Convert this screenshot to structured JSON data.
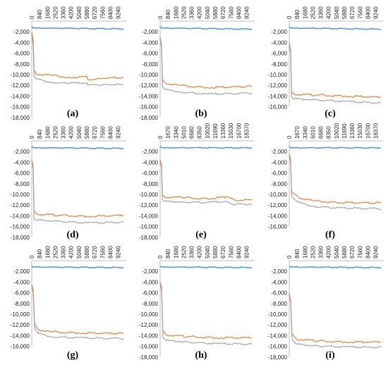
{
  "colors": {
    "series_1": "#5B9BD5",
    "series_2": "#ED7D31",
    "series_3": "#A5A5A5",
    "axis": "#bfbfbf"
  },
  "chart_data": [
    {
      "label": "(a)",
      "type": "line",
      "x_ticks": [
        "0",
        "840",
        "1680",
        "2520",
        "3360",
        "4200",
        "5040",
        "5880",
        "6720",
        "7560",
        "8400",
        "9240"
      ],
      "x_max": 9800,
      "ylim": [
        -18000,
        0
      ],
      "y_ticks": [
        "-2,000",
        "-4,000",
        "-6,000",
        "-8,000",
        "-10,000",
        "-12,000",
        "-14,000",
        "-16,000",
        "-18,000"
      ],
      "x_axis_position": "top",
      "series": [
        {
          "values": [
            [
              0,
              -1000
            ],
            [
              150,
              -1300
            ],
            [
              9800,
              -1450
            ]
          ]
        },
        {
          "values": [
            [
              0,
              -2000
            ],
            [
              150,
              -3500
            ],
            [
              250,
              -9200
            ],
            [
              500,
              -9900
            ],
            [
              2000,
              -10100
            ],
            [
              4000,
              -10500
            ],
            [
              5900,
              -10400
            ],
            [
              6000,
              -10900
            ],
            [
              8000,
              -10700
            ],
            [
              9800,
              -10500
            ]
          ]
        },
        {
          "values": [
            [
              0,
              -2500
            ],
            [
              150,
              -4500
            ],
            [
              250,
              -10300
            ],
            [
              500,
              -10800
            ],
            [
              2000,
              -11400
            ],
            [
              4000,
              -11600
            ],
            [
              5900,
              -11500
            ],
            [
              6000,
              -12000
            ],
            [
              8000,
              -11800
            ],
            [
              9800,
              -11900
            ]
          ]
        }
      ]
    },
    {
      "label": "(b)",
      "type": "line",
      "x_ticks": [
        "0",
        "840",
        "1680",
        "2520",
        "3360",
        "4200",
        "5040",
        "5880",
        "6720",
        "7560",
        "8400",
        "9240"
      ],
      "x_max": 9800,
      "ylim": [
        -18000,
        0
      ],
      "y_ticks": [
        "-2,000",
        "-4,000",
        "-6,000",
        "-8,000",
        "-10,000",
        "-12,000",
        "-14,000",
        "-16,000",
        "-18,000"
      ],
      "x_axis_position": "top",
      "series": [
        {
          "values": [
            [
              0,
              -1000
            ],
            [
              150,
              -1300
            ],
            [
              9800,
              -1500
            ]
          ]
        },
        {
          "values": [
            [
              0,
              -3000
            ],
            [
              150,
              -4500
            ],
            [
              250,
              -11000
            ],
            [
              600,
              -11600
            ],
            [
              2000,
              -12000
            ],
            [
              5000,
              -12400
            ],
            [
              9800,
              -12200
            ]
          ]
        },
        {
          "values": [
            [
              0,
              -3500
            ],
            [
              150,
              -5000
            ],
            [
              250,
              -12200
            ],
            [
              600,
              -12800
            ],
            [
              2000,
              -13200
            ],
            [
              5000,
              -13600
            ],
            [
              9800,
              -13500
            ]
          ]
        }
      ]
    },
    {
      "label": "(c)",
      "type": "line",
      "x_ticks": [
        "0",
        "840",
        "1680",
        "2520",
        "3360",
        "4200",
        "5040",
        "5880",
        "6720",
        "7560",
        "8400",
        "9240"
      ],
      "x_max": 9800,
      "ylim": [
        -16000,
        0
      ],
      "y_ticks": [
        "-2,000",
        "-4,000",
        "-6,000",
        "-8,000",
        "-10,000",
        "-12,000",
        "-14,000",
        "-16,000"
      ],
      "x_axis_position": "top",
      "series": [
        {
          "values": [
            [
              0,
              -1000
            ],
            [
              150,
              -1300
            ],
            [
              9800,
              -1500
            ]
          ]
        },
        {
          "values": [
            [
              0,
              -4000
            ],
            [
              150,
              -5500
            ],
            [
              250,
              -13300
            ],
            [
              600,
              -13700
            ],
            [
              3000,
              -13800
            ],
            [
              6000,
              -14000
            ],
            [
              9800,
              -14200
            ]
          ]
        },
        {
          "values": [
            [
              0,
              -4500
            ],
            [
              150,
              -6000
            ],
            [
              250,
              -14200
            ],
            [
              600,
              -14500
            ],
            [
              3000,
              -14700
            ],
            [
              6000,
              -15000
            ],
            [
              9800,
              -15300
            ]
          ]
        }
      ]
    },
    {
      "label": "(d)",
      "type": "line",
      "x_ticks": [
        "0",
        "840",
        "1680",
        "2520",
        "3360",
        "4200",
        "5040",
        "5880",
        "6720",
        "7560",
        "8400",
        "9240"
      ],
      "x_max": 9800,
      "ylim": [
        -18000,
        0
      ],
      "y_ticks": [
        "-2,000",
        "-4,000",
        "-6,000",
        "-8,000",
        "-10,000",
        "-12,000",
        "-14,000",
        "-16,000",
        "-18,000"
      ],
      "x_axis_position": "top",
      "series": [
        {
          "values": [
            [
              0,
              -1000
            ],
            [
              150,
              -1300
            ],
            [
              9800,
              -1400
            ]
          ]
        },
        {
          "values": [
            [
              0,
              -3500
            ],
            [
              150,
              -4800
            ],
            [
              250,
              -13200
            ],
            [
              600,
              -13700
            ],
            [
              3000,
              -13900
            ],
            [
              6000,
              -14100
            ],
            [
              9800,
              -13900
            ]
          ]
        },
        {
          "values": [
            [
              0,
              -4000
            ],
            [
              150,
              -5300
            ],
            [
              250,
              -14500
            ],
            [
              600,
              -14800
            ],
            [
              3000,
              -15000
            ],
            [
              6000,
              -15300
            ],
            [
              9800,
              -15200
            ]
          ]
        }
      ]
    },
    {
      "label": "(e)",
      "type": "line",
      "x_ticks": [
        "0",
        "1670",
        "3340",
        "5010",
        "6680",
        "8350",
        "10020",
        "11690",
        "13360",
        "15030",
        "16700",
        "18370"
      ],
      "x_max": 19500,
      "ylim": [
        -18000,
        0
      ],
      "y_ticks": [
        "-2,000",
        "-4,000",
        "-6,000",
        "-8,000",
        "-10,000",
        "-12,000",
        "-14,000",
        "-16,000",
        "-18,000"
      ],
      "x_axis_position": "top",
      "series": [
        {
          "values": [
            [
              0,
              -1000
            ],
            [
              300,
              -1300
            ],
            [
              19500,
              -1300
            ]
          ]
        },
        {
          "values": [
            [
              0,
              -3500
            ],
            [
              300,
              -4500
            ],
            [
              500,
              -10200
            ],
            [
              1000,
              -10500
            ],
            [
              5000,
              -10600
            ],
            [
              10000,
              -10800
            ],
            [
              14000,
              -10500
            ],
            [
              16000,
              -11100
            ],
            [
              19500,
              -11000
            ]
          ]
        },
        {
          "values": [
            [
              0,
              -4000
            ],
            [
              300,
              -5000
            ],
            [
              500,
              -11000
            ],
            [
              1000,
              -11300
            ],
            [
              5000,
              -11400
            ],
            [
              10000,
              -11500
            ],
            [
              14000,
              -11300
            ],
            [
              16000,
              -11900
            ],
            [
              19500,
              -11800
            ]
          ]
        }
      ]
    },
    {
      "label": "(f)",
      "type": "line",
      "x_ticks": [
        "0",
        "1670",
        "3340",
        "5010",
        "6680",
        "8350",
        "10020",
        "11690",
        "13360",
        "15030",
        "16700",
        "18370"
      ],
      "x_max": 19500,
      "ylim": [
        -16000,
        0
      ],
      "y_ticks": [
        "-2,000",
        "-4,000",
        "-6,000",
        "-8,000",
        "-10,000",
        "-12,000",
        "-14,000",
        "-16,000"
      ],
      "x_axis_position": "top",
      "series": [
        {
          "values": [
            [
              0,
              -1000
            ],
            [
              300,
              -1300
            ],
            [
              19500,
              -1300
            ]
          ]
        },
        {
          "values": [
            [
              0,
              -2500
            ],
            [
              300,
              -3500
            ],
            [
              500,
              -9500
            ],
            [
              2000,
              -10600
            ],
            [
              5000,
              -11200
            ],
            [
              10000,
              -11500
            ],
            [
              19500,
              -11600
            ]
          ]
        },
        {
          "values": [
            [
              0,
              -3000
            ],
            [
              300,
              -4000
            ],
            [
              500,
              -10300
            ],
            [
              2000,
              -11500
            ],
            [
              5000,
              -12200
            ],
            [
              10000,
              -12500
            ],
            [
              19500,
              -12700
            ]
          ]
        }
      ]
    },
    {
      "label": "(g)",
      "type": "line",
      "x_ticks": [
        "0",
        "840",
        "1680",
        "2520",
        "3360",
        "4200",
        "5040",
        "5880",
        "6720",
        "7560",
        "8400",
        "9240"
      ],
      "x_max": 9800,
      "ylim": [
        -16000,
        0
      ],
      "y_ticks": [
        "-2,000",
        "-4,000",
        "-6,000",
        "-8,000",
        "-10,000",
        "-12,000",
        "-14,000",
        "-16,000"
      ],
      "x_axis_position": "top",
      "series": [
        {
          "values": [
            [
              0,
              -1000
            ],
            [
              150,
              -1200
            ],
            [
              9800,
              -1300
            ]
          ]
        },
        {
          "values": [
            [
              0,
              -4500
            ],
            [
              150,
              -5500
            ],
            [
              300,
              -11800
            ],
            [
              700,
              -12900
            ],
            [
              2000,
              -13300
            ],
            [
              5000,
              -13500
            ],
            [
              9800,
              -13600
            ]
          ]
        },
        {
          "values": [
            [
              0,
              -5000
            ],
            [
              150,
              -6000
            ],
            [
              300,
              -12500
            ],
            [
              700,
              -13600
            ],
            [
              2000,
              -14200
            ],
            [
              5000,
              -14400
            ],
            [
              9800,
              -14600
            ]
          ]
        }
      ]
    },
    {
      "label": "(h)",
      "type": "line",
      "x_ticks": [
        "0",
        "840",
        "1680",
        "2520",
        "3360",
        "4200",
        "5040",
        "5880",
        "6720",
        "7560",
        "8400",
        "9240"
      ],
      "x_max": 9800,
      "ylim": [
        -18000,
        0
      ],
      "y_ticks": [
        "-2,000",
        "-4,000",
        "-6,000",
        "-8,000",
        "-10,000",
        "-12,000",
        "-14,000",
        "-16,000",
        "-18,000"
      ],
      "x_axis_position": "top",
      "series": [
        {
          "values": [
            [
              0,
              -1000
            ],
            [
              150,
              -1200
            ],
            [
              9800,
              -1300
            ]
          ]
        },
        {
          "values": [
            [
              0,
              -4000
            ],
            [
              150,
              -5000
            ],
            [
              300,
              -13200
            ],
            [
              700,
              -13900
            ],
            [
              3000,
              -14200
            ],
            [
              6000,
              -14400
            ],
            [
              9800,
              -14400
            ]
          ]
        },
        {
          "values": [
            [
              0,
              -4500
            ],
            [
              150,
              -5500
            ],
            [
              300,
              -14300
            ],
            [
              700,
              -14900
            ],
            [
              3000,
              -15200
            ],
            [
              6000,
              -15500
            ],
            [
              9800,
              -15600
            ]
          ]
        }
      ]
    },
    {
      "label": "(i)",
      "type": "line",
      "x_ticks": [
        "0",
        "840",
        "1680",
        "2520",
        "3360",
        "4200",
        "5040",
        "5880",
        "6720",
        "7560",
        "8400",
        "9240"
      ],
      "x_max": 9800,
      "ylim": [
        -18000,
        0
      ],
      "y_ticks": [
        "-2,000",
        "-4,000",
        "-6,000",
        "-8,000",
        "-10,000",
        "-12,000",
        "-14,000",
        "-16,000",
        "-18,000"
      ],
      "x_axis_position": "top",
      "series": [
        {
          "values": [
            [
              0,
              -1000
            ],
            [
              150,
              -1200
            ],
            [
              9800,
              -1300
            ]
          ]
        },
        {
          "values": [
            [
              0,
              -6000
            ],
            [
              150,
              -7500
            ],
            [
              300,
              -13800
            ],
            [
              800,
              -14700
            ],
            [
              3000,
              -15000
            ],
            [
              6000,
              -15200
            ],
            [
              9800,
              -15200
            ]
          ]
        },
        {
          "values": [
            [
              0,
              -6500
            ],
            [
              150,
              -8000
            ],
            [
              300,
              -14600
            ],
            [
              800,
              -15600
            ],
            [
              3000,
              -15900
            ],
            [
              6000,
              -16100
            ],
            [
              9800,
              -16200
            ]
          ]
        }
      ]
    }
  ]
}
